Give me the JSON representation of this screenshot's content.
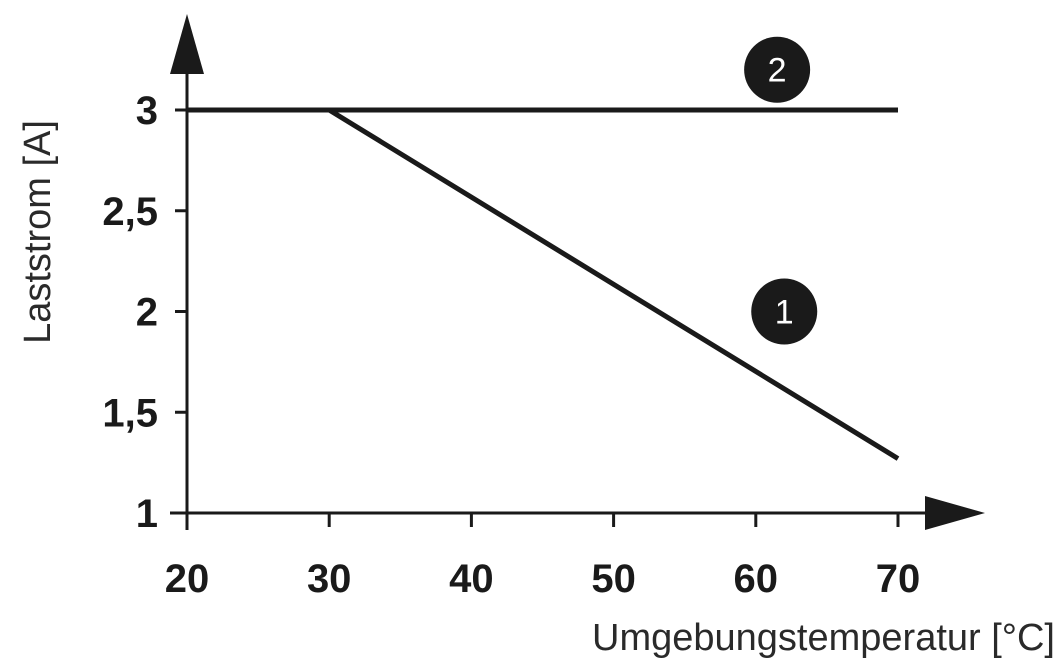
{
  "chart_data": {
    "type": "line",
    "title": "",
    "xlabel": "Umgebungstemperatur [°C]",
    "ylabel": "Laststrom [A]",
    "xlim": [
      20,
      70
    ],
    "ylim": [
      1,
      3
    ],
    "x_ticks": [
      20,
      30,
      40,
      50,
      60,
      70
    ],
    "y_ticks": [
      1,
      1.5,
      2,
      2.5,
      3
    ],
    "x_tick_labels": [
      "20",
      "30",
      "40",
      "50",
      "60",
      "70"
    ],
    "y_tick_labels": [
      "1",
      "1,5",
      "2",
      "2,5",
      "3"
    ],
    "grid": false,
    "legend": "none",
    "series": [
      {
        "marker": "1",
        "x": [
          20,
          30,
          70
        ],
        "y": [
          3,
          3,
          1.27
        ],
        "color": "#1a1a1a"
      },
      {
        "marker": "2",
        "x": [
          20,
          70
        ],
        "y": [
          3,
          3
        ],
        "color": "#1a1a1a"
      }
    ],
    "marker_labels": [
      {
        "text": "1",
        "x": 62,
        "y": 2
      },
      {
        "text": "2",
        "x": 61.5,
        "y": 3.2
      }
    ]
  }
}
